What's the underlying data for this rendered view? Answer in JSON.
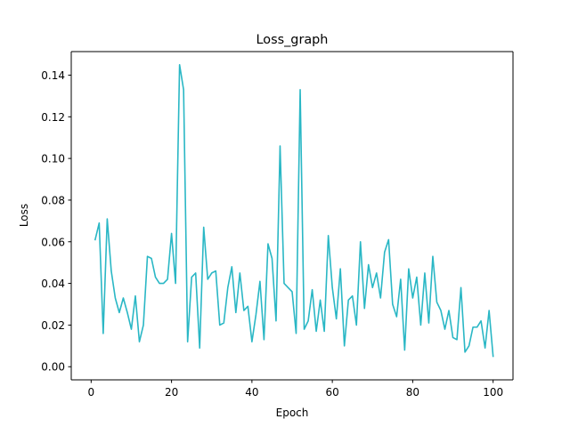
{
  "chart_data": {
    "type": "line",
    "title": "Loss_graph",
    "xlabel": "Epoch",
    "ylabel": "Loss",
    "xlim": [
      -4.95,
      104.95
    ],
    "ylim": [
      -0.0063,
      0.1513
    ],
    "xticks": [
      0,
      20,
      40,
      60,
      80,
      100
    ],
    "yticks": [
      0.0,
      0.02,
      0.04,
      0.06,
      0.08,
      0.1,
      0.12,
      0.14
    ],
    "ytick_labels": [
      "0.00",
      "0.02",
      "0.04",
      "0.06",
      "0.08",
      "0.10",
      "0.12",
      "0.14"
    ],
    "grid": false,
    "legend": "none",
    "series": [
      {
        "color": "#2ab7c5",
        "x": [
          1,
          2,
          3,
          4,
          5,
          6,
          7,
          8,
          9,
          10,
          11,
          12,
          13,
          14,
          15,
          16,
          17,
          18,
          19,
          20,
          21,
          22,
          23,
          24,
          25,
          26,
          27,
          28,
          29,
          30,
          31,
          32,
          33,
          34,
          35,
          36,
          37,
          38,
          39,
          40,
          41,
          42,
          43,
          44,
          45,
          46,
          47,
          48,
          49,
          50,
          51,
          52,
          53,
          54,
          55,
          56,
          57,
          58,
          59,
          60,
          61,
          62,
          63,
          64,
          65,
          66,
          67,
          68,
          69,
          70,
          71,
          72,
          73,
          74,
          75,
          76,
          77,
          78,
          79,
          80,
          81,
          82,
          83,
          84,
          85,
          86,
          87,
          88,
          89,
          90,
          91,
          92,
          93,
          94,
          95,
          96,
          97,
          98,
          99,
          100
        ],
        "y": [
          0.061,
          0.069,
          0.016,
          0.071,
          0.046,
          0.033,
          0.026,
          0.033,
          0.026,
          0.018,
          0.034,
          0.012,
          0.02,
          0.053,
          0.052,
          0.043,
          0.04,
          0.04,
          0.042,
          0.064,
          0.04,
          0.145,
          0.133,
          0.012,
          0.043,
          0.045,
          0.009,
          0.067,
          0.042,
          0.045,
          0.046,
          0.02,
          0.021,
          0.038,
          0.048,
          0.026,
          0.045,
          0.027,
          0.029,
          0.012,
          0.025,
          0.041,
          0.013,
          0.059,
          0.052,
          0.022,
          0.106,
          0.04,
          0.038,
          0.036,
          0.016,
          0.133,
          0.018,
          0.022,
          0.037,
          0.017,
          0.032,
          0.017,
          0.063,
          0.038,
          0.023,
          0.047,
          0.01,
          0.032,
          0.034,
          0.02,
          0.06,
          0.028,
          0.049,
          0.038,
          0.045,
          0.033,
          0.055,
          0.061,
          0.03,
          0.024,
          0.042,
          0.008,
          0.047,
          0.033,
          0.043,
          0.02,
          0.045,
          0.021,
          0.053,
          0.031,
          0.027,
          0.018,
          0.027,
          0.014,
          0.013,
          0.038,
          0.007,
          0.01,
          0.019,
          0.019,
          0.022,
          0.009,
          0.027,
          0.005
        ]
      }
    ]
  }
}
